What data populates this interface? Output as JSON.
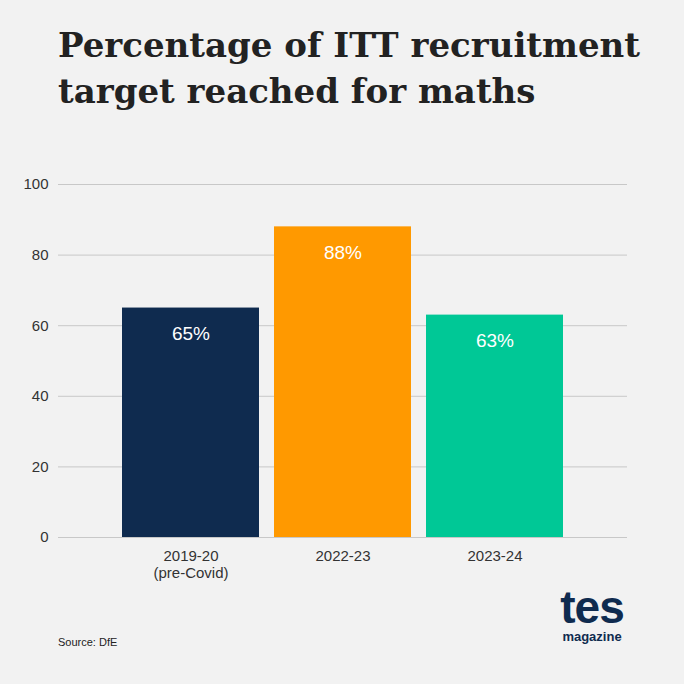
{
  "chart_data": {
    "type": "bar",
    "title": "Percentage of ITT recruitment target reached for maths",
    "categories": [
      "2019-20\n(pre-Covid)",
      "2022-23",
      "2023-24"
    ],
    "values": [
      65,
      88,
      63
    ],
    "value_labels": [
      "65%",
      "88%",
      "63%"
    ],
    "colors": [
      "#0f2b4f",
      "#ff9900",
      "#00c896"
    ],
    "ylim": [
      0,
      100
    ],
    "yticks": [
      0,
      20,
      40,
      60,
      80,
      100
    ],
    "grid": true,
    "data_labels": true,
    "source": "Source: DfE",
    "logo": {
      "text": "tes",
      "subtext": "magazine"
    }
  }
}
